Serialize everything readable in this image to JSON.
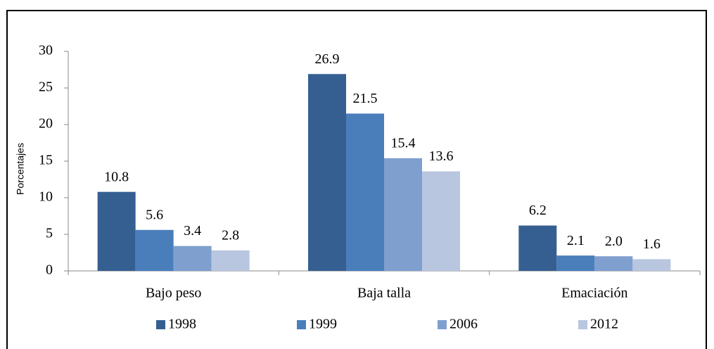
{
  "chart_data": {
    "type": "bar",
    "y_label": "Porcentajes",
    "categories": [
      "Bajo peso",
      "Baja talla",
      "Emaciación"
    ],
    "series": [
      {
        "name": "1998",
        "color": "#365f91",
        "values": [
          10.8,
          26.9,
          6.2
        ],
        "value_labels": [
          "10.8",
          "26.9",
          "6.2"
        ]
      },
      {
        "name": "1999",
        "color": "#4a7ebb",
        "values": [
          5.6,
          21.5,
          2.1
        ],
        "value_labels": [
          "5.6",
          "21.5",
          "2.1"
        ]
      },
      {
        "name": "2006",
        "color": "#7f9fcf",
        "values": [
          3.4,
          15.4,
          2.0
        ],
        "value_labels": [
          "3.4",
          "15.4",
          "2.0"
        ]
      },
      {
        "name": "2012",
        "color": "#b8c6e0",
        "values": [
          2.8,
          13.6,
          1.6
        ],
        "value_labels": [
          "2.8",
          "13.6",
          "1.6"
        ]
      }
    ],
    "ylim": [
      0,
      30
    ],
    "yticks": [
      0,
      5,
      10,
      15,
      20,
      25,
      30
    ],
    "legend": "bottom"
  }
}
